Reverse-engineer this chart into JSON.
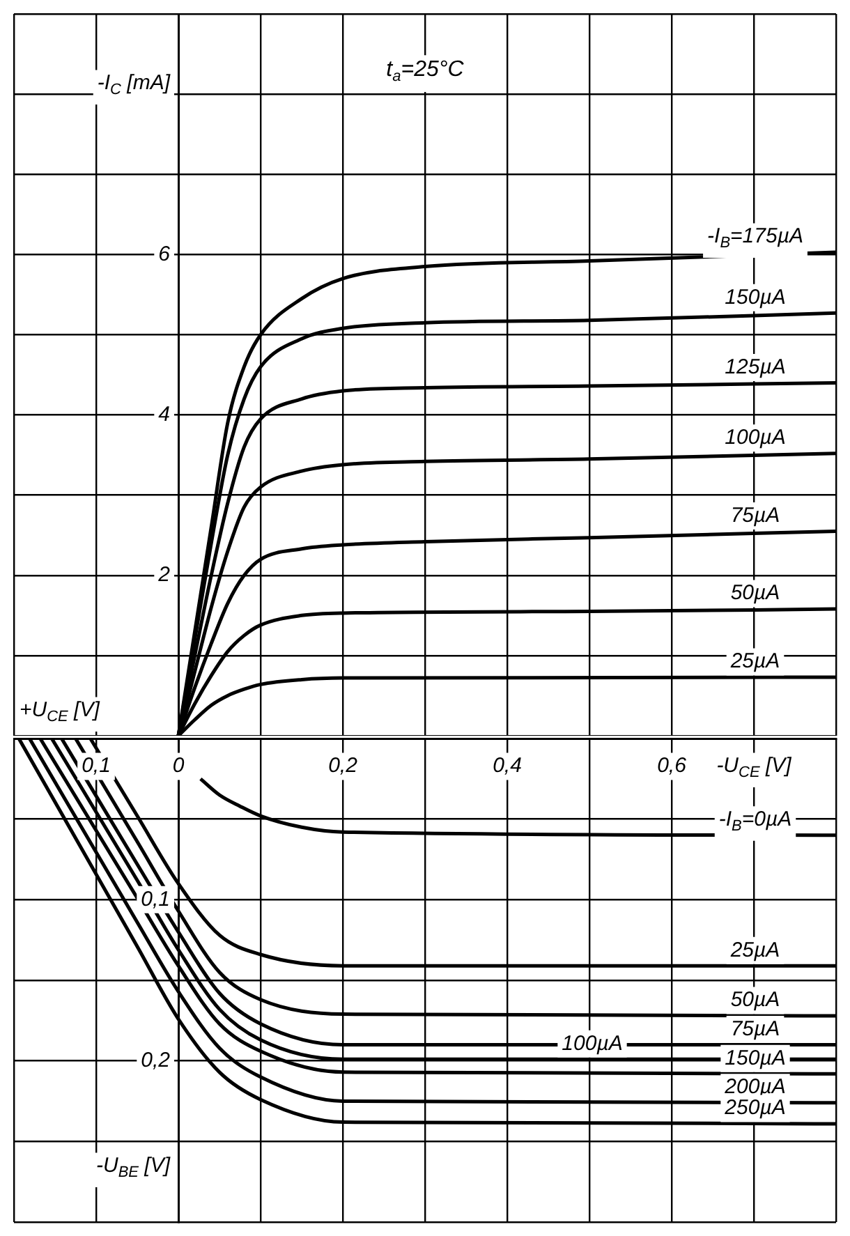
{
  "chart_data": [
    {
      "type": "line",
      "ylabel": "-I$_{C}$ [mA]",
      "annotations": [
        "t$_{a}$=25°C",
        "+U$_{CE}$ [V]"
      ],
      "xlim": [
        -0.2,
        0.8
      ],
      "xticks": [
        {
          "value": -0.2,
          "label": null
        },
        {
          "value": -0.1,
          "label": null
        },
        {
          "value": 0,
          "label": null
        },
        {
          "value": 0.1,
          "label": null
        },
        {
          "value": 0.2,
          "label": null
        },
        {
          "value": 0.3,
          "label": null
        },
        {
          "value": 0.4,
          "label": null
        },
        {
          "value": 0.5,
          "label": null
        },
        {
          "value": 0.6,
          "label": null
        },
        {
          "value": 0.7,
          "label": null
        },
        {
          "value": 0.8,
          "label": null
        }
      ],
      "ylim": [
        0,
        9
      ],
      "yticks": [
        {
          "value": 0,
          "label": null
        },
        {
          "value": 1,
          "label": null
        },
        2,
        {
          "value": 3,
          "label": null
        },
        4,
        {
          "value": 5,
          "label": null
        },
        6,
        {
          "value": 7,
          "label": null
        },
        {
          "value": 8,
          "label": null
        },
        {
          "value": 9,
          "label": null
        }
      ],
      "tick_labels": "y",
      "grid": true,
      "legend": false,
      "series": [
        {
          "name": "-I$_{B}$=175µA",
          "color": "#000000",
          "x": [
            0,
            0.02,
            0.04,
            0.06,
            0.08,
            0.1,
            0.15,
            0.2,
            0.3,
            0.5,
            0.8
          ],
          "values": [
            0,
            1.3,
            2.6,
            3.9,
            4.6,
            5.0,
            5.45,
            5.7,
            5.85,
            5.92,
            6.03
          ]
        },
        {
          "name": "150µA",
          "color": "#000000",
          "x": [
            0,
            0.02,
            0.04,
            0.06,
            0.08,
            0.1,
            0.15,
            0.2,
            0.3,
            0.5,
            0.8
          ],
          "values": [
            0,
            1.2,
            2.4,
            3.5,
            4.2,
            4.6,
            4.95,
            5.08,
            5.15,
            5.18,
            5.27
          ]
        },
        {
          "name": "125µA",
          "color": "#000000",
          "x": [
            0,
            0.02,
            0.04,
            0.06,
            0.08,
            0.1,
            0.15,
            0.2,
            0.3,
            0.5,
            0.8
          ],
          "values": [
            0,
            1.0,
            2.0,
            2.9,
            3.6,
            3.95,
            4.2,
            4.3,
            4.34,
            4.36,
            4.4
          ]
        },
        {
          "name": "100µA",
          "color": "#000000",
          "x": [
            0,
            0.02,
            0.04,
            0.06,
            0.08,
            0.1,
            0.15,
            0.2,
            0.3,
            0.5,
            0.8
          ],
          "values": [
            0,
            0.8,
            1.6,
            2.3,
            2.85,
            3.1,
            3.3,
            3.38,
            3.42,
            3.45,
            3.52
          ]
        },
        {
          "name": "75µA",
          "color": "#000000",
          "x": [
            0,
            0.02,
            0.04,
            0.06,
            0.08,
            0.1,
            0.15,
            0.2,
            0.3,
            0.5,
            0.8
          ],
          "values": [
            0,
            0.6,
            1.15,
            1.65,
            2.0,
            2.2,
            2.33,
            2.38,
            2.42,
            2.47,
            2.55
          ]
        },
        {
          "name": "50µA",
          "color": "#000000",
          "x": [
            0,
            0.02,
            0.04,
            0.06,
            0.08,
            0.1,
            0.15,
            0.2,
            0.5,
            0.8
          ],
          "values": [
            0,
            0.4,
            0.75,
            1.05,
            1.25,
            1.38,
            1.5,
            1.53,
            1.55,
            1.58
          ]
        },
        {
          "name": "25µA",
          "color": "#000000",
          "x": [
            0,
            0.02,
            0.04,
            0.06,
            0.08,
            0.1,
            0.15,
            0.2,
            0.8
          ],
          "values": [
            0,
            0.2,
            0.38,
            0.5,
            0.58,
            0.64,
            0.7,
            0.72,
            0.73
          ]
        }
      ]
    },
    {
      "type": "line",
      "xlabel": "-U$_{CE}$ [V]",
      "ylabel": "-U$_{BE}$ [V]",
      "xlim": [
        -0.2,
        0.8
      ],
      "xticks": [
        {
          "value": -0.2,
          "label": null
        },
        {
          "value": -0.1,
          "label": "0,1"
        },
        0,
        {
          "value": 0.1,
          "label": null
        },
        {
          "value": 0.2,
          "label": "0,2"
        },
        {
          "value": 0.3,
          "label": null
        },
        {
          "value": 0.4,
          "label": "0,4"
        },
        {
          "value": 0.5,
          "label": null
        },
        {
          "value": 0.6,
          "label": "0,6"
        },
        {
          "value": 0.7,
          "label": null
        },
        {
          "value": 0.8,
          "label": null
        }
      ],
      "ylim": [
        0.3,
        0
      ],
      "yticks": [
        {
          "value": 0,
          "label": null
        },
        {
          "value": 0.05,
          "label": null
        },
        {
          "value": 0.1,
          "label": "0,1"
        },
        {
          "value": 0.15,
          "label": null
        },
        {
          "value": 0.2,
          "label": "0,2"
        },
        {
          "value": 0.25,
          "label": null
        },
        {
          "value": 0.3,
          "label": null
        }
      ],
      "grid": true,
      "legend": false,
      "series": [
        {
          "name": "-I$_{B}$=0µA",
          "color": "#000000",
          "x": [
            0.027,
            0.05,
            0.075,
            0.1,
            0.15,
            0.2,
            0.8
          ],
          "values": [
            0.025,
            0.035,
            0.042,
            0.048,
            0.055,
            0.058,
            0.06
          ]
        },
        {
          "name": "25µA",
          "color": "#000000",
          "x": [
            -0.107,
            -0.05,
            0,
            0.05,
            0.1,
            0.2,
            0.8
          ],
          "values": [
            0,
            0.048,
            0.09,
            0.122,
            0.134,
            0.141,
            0.141
          ]
        },
        {
          "name": "50µA",
          "color": "#000000",
          "x": [
            -0.125,
            -0.05,
            0,
            0.05,
            0.1,
            0.2,
            0.8
          ],
          "values": [
            0,
            0.064,
            0.107,
            0.145,
            0.162,
            0.171,
            0.172
          ]
        },
        {
          "name": "75µA",
          "color": "#000000",
          "x": [
            -0.142,
            -0.05,
            0,
            0.05,
            0.1,
            0.2,
            0.8
          ],
          "values": [
            0,
            0.078,
            0.12,
            0.158,
            0.177,
            0.19,
            0.19
          ]
        },
        {
          "name": "100µA",
          "color": "#000000",
          "x": [
            -0.154,
            -0.05,
            0,
            0.05,
            0.1,
            0.2,
            0.8
          ],
          "values": [
            0,
            0.088,
            0.131,
            0.168,
            0.187,
            0.199,
            0.199
          ]
        },
        {
          "name": "150µA",
          "color": "#000000",
          "x": [
            -0.168,
            -0.05,
            0,
            0.05,
            0.1,
            0.2,
            0.8
          ],
          "values": [
            0,
            0.099,
            0.141,
            0.177,
            0.194,
            0.207,
            0.208
          ]
        },
        {
          "name": "200µA",
          "color": "#000000",
          "x": [
            -0.181,
            -0.05,
            0,
            0.05,
            0.1,
            0.2,
            0.8
          ],
          "values": [
            0,
            0.114,
            0.157,
            0.192,
            0.21,
            0.225,
            0.226
          ]
        },
        {
          "name": "250µA",
          "color": "#000000",
          "x": [
            -0.194,
            -0.05,
            0,
            0.05,
            0.1,
            0.2,
            0.8
          ],
          "values": [
            0,
            0.129,
            0.174,
            0.207,
            0.224,
            0.238,
            0.239
          ]
        }
      ]
    }
  ]
}
